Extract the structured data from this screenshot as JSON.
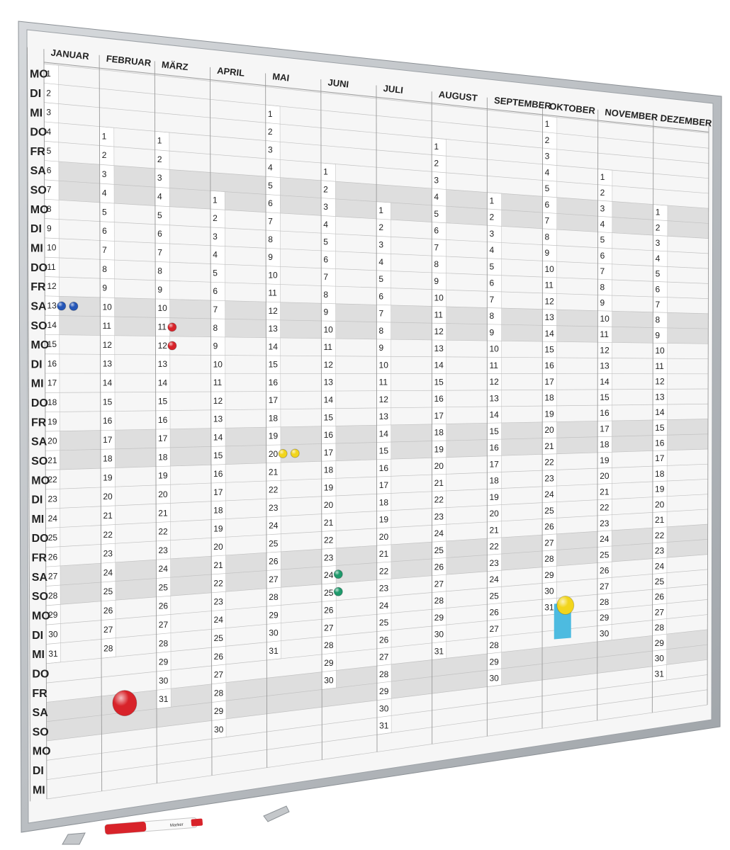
{
  "weekdays": [
    "MO",
    "DI",
    "MI",
    "DO",
    "FR",
    "SA",
    "SO",
    "MO",
    "DI",
    "MI",
    "DO",
    "FR",
    "SA",
    "SO",
    "MO",
    "DI",
    "MI",
    "DO",
    "FR",
    "SA",
    "SO",
    "MO",
    "DI",
    "MI",
    "DO",
    "FR",
    "SA",
    "SO",
    "MO",
    "DI",
    "MI",
    "DO",
    "FR",
    "SA",
    "SO",
    "MO",
    "DI",
    "MI"
  ],
  "weekend_labels": [
    "SA",
    "SO"
  ],
  "months": [
    {
      "name": "JANUAR",
      "start": 1,
      "days": 31
    },
    {
      "name": "FEBRUAR",
      "start": 4,
      "days": 28
    },
    {
      "name": "MÄRZ",
      "start": 4,
      "days": 31
    },
    {
      "name": "APRIL",
      "start": 7,
      "days": 30
    },
    {
      "name": "MAI",
      "start": 2,
      "days": 31
    },
    {
      "name": "JUNI",
      "start": 5,
      "days": 30
    },
    {
      "name": "JULI",
      "start": 7,
      "days": 31
    },
    {
      "name": "AUGUST",
      "start": 3,
      "days": 31
    },
    {
      "name": "SEPTEMBER",
      "start": 6,
      "days": 30
    },
    {
      "name": "OKTOBER",
      "start": 1,
      "days": 31
    },
    {
      "name": "NOVEMBER",
      "start": 4,
      "days": 30
    },
    {
      "name": "DEZEMBER",
      "start": 6,
      "days": 31
    }
  ],
  "marker_label": "Marker",
  "colors": {
    "frame": "#b8bcc1",
    "board": "#f6f6f6",
    "grid": "#c2c2c2",
    "weekend_band": "#dedede",
    "day_strip": "#ffffff",
    "magnet_blue": "#2456b8",
    "magnet_red": "#d8232a",
    "magnet_yellow": "#f2d51c",
    "magnet_green": "#1f9a6c",
    "sticky_note": "#4dbbe0"
  },
  "magnets": [
    {
      "color": "blue",
      "month": 0,
      "day": 13,
      "count": 2,
      "size": "small"
    },
    {
      "color": "red",
      "month": 2,
      "day": 11,
      "count": 1,
      "size": "small"
    },
    {
      "color": "red",
      "month": 2,
      "day": 12,
      "count": 1,
      "size": "small"
    },
    {
      "color": "yellow",
      "month": 4,
      "day": 20,
      "count": 2,
      "size": "small"
    },
    {
      "color": "green",
      "month": 5,
      "day": 24,
      "count": 1,
      "size": "small"
    },
    {
      "color": "green",
      "month": 5,
      "day": 25,
      "count": 1,
      "size": "small"
    },
    {
      "color": "red",
      "month": 1,
      "row": 33,
      "count": 1,
      "size": "large"
    },
    {
      "color": "yellow",
      "month": 9,
      "row": 30,
      "count": 1,
      "size": "large"
    }
  ]
}
